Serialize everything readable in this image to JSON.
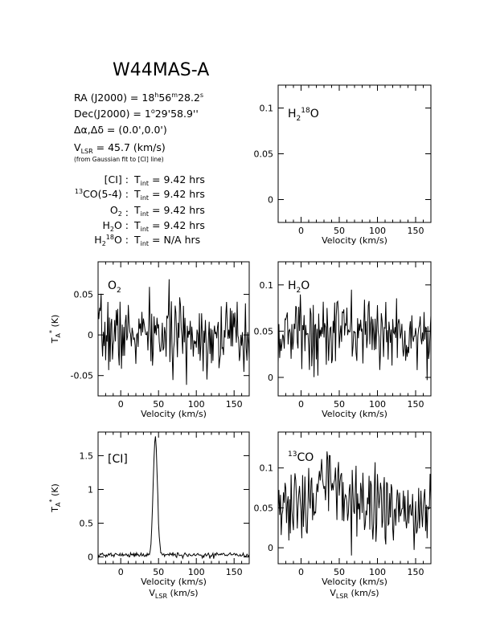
{
  "header": {
    "title": "W44MAS-A",
    "ra_prefix": "RA (J2000) = 18",
    "ra_h": "h",
    "ra_mid": "56",
    "ra_m": "m",
    "ra_end": "28.2",
    "ra_s": "s",
    "dec_prefix": "Dec(J2000) = 1",
    "dec_d": "o",
    "dec_end": "29'58.9''",
    "offset": "Δα,Δδ = (0.0',0.0')",
    "vlsr_v": "V",
    "vlsr_sub": "LSR",
    "vlsr_rest": " = 45.7 (km/s)",
    "vlsr_note": "(from Gaussian fit to [CI] line)"
  },
  "integrations": [
    {
      "pre": "",
      "sup": "",
      "name": "[CI]",
      "sub": "",
      "post": "",
      "t": "T",
      "tsub": "int",
      "val": "= 9.42 hrs"
    },
    {
      "pre": "",
      "sup": "13",
      "name": "CO(5-4)",
      "sub": "",
      "post": "",
      "t": "T",
      "tsub": "int",
      "val": "= 9.42 hrs"
    },
    {
      "pre": "",
      "sup": "",
      "name": "O",
      "sub": "2",
      "post": "",
      "t": "T",
      "tsub": "int",
      "val": "= 9.42 hrs"
    },
    {
      "pre": "",
      "sup": "",
      "name": "H",
      "sub": "2",
      "post": "O",
      "t": "T",
      "tsub": "int",
      "val": "= 9.42 hrs"
    },
    {
      "pre": "H",
      "sup": "18",
      "name": "",
      "sub": "2",
      "post": "O",
      "t": "T",
      "tsub": "int",
      "val": "= N/A hrs"
    }
  ],
  "chart_data": [
    {
      "id": "h218o",
      "type": "line",
      "label": "H2 18O",
      "xlabel": "Velocity (km/s)",
      "ylabel": "",
      "xlim": [
        -30,
        170
      ],
      "ylim": [
        -0.025,
        0.125
      ],
      "xticks": [
        0,
        50,
        100,
        150
      ],
      "yticks": [
        0,
        0.05,
        0.1
      ],
      "ytick_labels": [
        "0",
        "0.05",
        "0.1"
      ],
      "values": []
    },
    {
      "id": "o2",
      "type": "line",
      "label": "O2",
      "xlabel": "Velocity (km/s)",
      "ylabel": "T*A (K)",
      "xlim": [
        -30,
        170
      ],
      "ylim": [
        -0.075,
        0.09
      ],
      "xticks": [
        0,
        50,
        100,
        150
      ],
      "yticks": [
        -0.05,
        0,
        0.05
      ],
      "ytick_labels": [
        "-0.05",
        "0",
        "0.05"
      ],
      "noise": {
        "mean": 0.0,
        "sigma": 0.022,
        "seed": 7
      }
    },
    {
      "id": "h2o",
      "type": "line",
      "label": "H2O",
      "xlabel": "Velocity (km/s)",
      "ylabel": "",
      "xlim": [
        -30,
        170
      ],
      "ylim": [
        -0.02,
        0.125
      ],
      "xticks": [
        0,
        50,
        100,
        150
      ],
      "yticks": [
        0,
        0.05,
        0.1
      ],
      "ytick_labels": [
        "0",
        "0.05",
        "0.1"
      ],
      "noise": {
        "mean": 0.048,
        "sigma": 0.02,
        "seed": 13
      }
    },
    {
      "id": "ci",
      "type": "line",
      "label": "[CI]",
      "xlabel": "Velocity (km/s)",
      "xlabel2_v": "V",
      "xlabel2_sub": "LSR",
      "xlabel2_rest": " (km/s)",
      "ylabel": "T*A (K)",
      "xlim": [
        -30,
        170
      ],
      "ylim": [
        -0.1,
        1.85
      ],
      "xticks": [
        0,
        50,
        100,
        150
      ],
      "yticks": [
        0,
        0.5,
        1,
        1.5
      ],
      "ytick_labels": [
        "0",
        "0.5",
        "1",
        "1.5"
      ],
      "noise": {
        "mean": 0.03,
        "sigma": 0.018,
        "seed": 21
      },
      "peak": {
        "center": 45.7,
        "height": 1.75,
        "fwhm": 6.5
      }
    },
    {
      "id": "co13",
      "type": "line",
      "label": "13CO",
      "xlabel": "Velocity (km/s)",
      "xlabel2_v": "V",
      "xlabel2_sub": "LSR",
      "xlabel2_rest": " (km/s)",
      "ylabel": "",
      "xlim": [
        -30,
        170
      ],
      "ylim": [
        -0.02,
        0.145
      ],
      "xticks": [
        0,
        50,
        100,
        150
      ],
      "yticks": [
        0,
        0.05,
        0.1
      ],
      "ytick_labels": [
        "0",
        "0.05",
        "0.1"
      ],
      "noise": {
        "mean": 0.05,
        "sigma": 0.022,
        "seed": 33
      },
      "bump": {
        "center": 40,
        "height": 0.04,
        "fwhm": 30
      }
    }
  ]
}
